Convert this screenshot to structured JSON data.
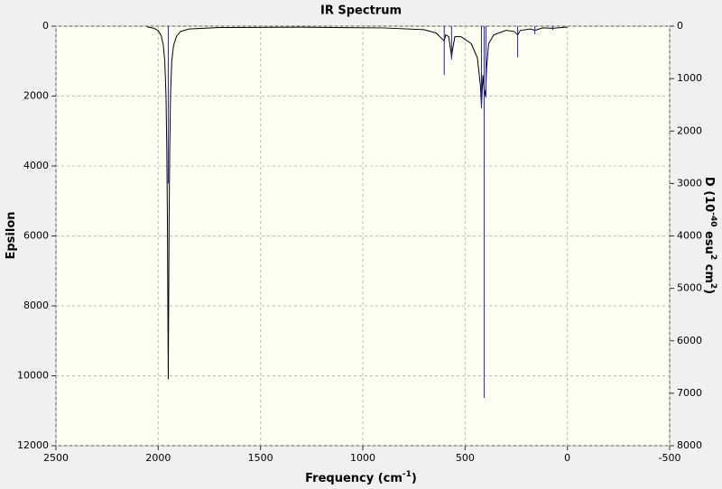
{
  "chart_data": {
    "type": "line",
    "title": "IR Spectrum",
    "x_label": [
      {
        "text": "Frequency (cm"
      },
      {
        "text": "-1",
        "sup": true
      },
      {
        "text": ")"
      }
    ],
    "y_label": [
      {
        "text": "Epsilon"
      }
    ],
    "y2_label": [
      {
        "text": "D (10"
      },
      {
        "text": "-40",
        "sup": true
      },
      {
        "text": " esu"
      },
      {
        "text": "2",
        "sup": true
      },
      {
        "text": " cm"
      },
      {
        "text": "2",
        "sup": true
      },
      {
        "text": ")"
      }
    ],
    "xlim": [
      2500,
      -500
    ],
    "xticks": [
      2500,
      2000,
      1500,
      1000,
      500,
      0,
      -500
    ],
    "ylim": [
      0,
      12000
    ],
    "yticks": [
      0,
      2000,
      4000,
      6000,
      8000,
      10000,
      12000
    ],
    "y_inverted": true,
    "y2lim": [
      0,
      8000
    ],
    "y2ticks": [
      0,
      1000,
      2000,
      3000,
      4000,
      5000,
      6000,
      7000,
      8000
    ],
    "grid": true,
    "series": [
      {
        "type": "line",
        "color": "#000000",
        "x": [
          2055,
          2020,
          2000,
          1985,
          1975,
          1968,
          1962,
          1958,
          1955,
          1953,
          1951,
          1949,
          1947,
          1944,
          1940,
          1934,
          1925,
          1910,
          1890,
          1850,
          1700,
          1300,
          900,
          700,
          640,
          615,
          602,
          595,
          580,
          570,
          566,
          562,
          550,
          520,
          470,
          440,
          425,
          420,
          413,
          407,
          400,
          395,
          385,
          360,
          300,
          260,
          243,
          230,
          180,
          159,
          120,
          71,
          30,
          0
        ],
        "values": [
          20,
          60,
          130,
          280,
          550,
          1000,
          2000,
          3600,
          5600,
          8000,
          10100,
          8000,
          5600,
          3600,
          2000,
          1000,
          550,
          280,
          150,
          80,
          40,
          30,
          50,
          100,
          200,
          350,
          420,
          250,
          300,
          700,
          880,
          700,
          300,
          300,
          500,
          900,
          1700,
          2300,
          1400,
          1800,
          2000,
          1200,
          500,
          250,
          120,
          150,
          250,
          120,
          80,
          120,
          50,
          60,
          40,
          30
        ]
      },
      {
        "type": "stick",
        "axis": "y2",
        "color": "#2020c0",
        "x": [
          1951,
          602,
          566,
          420,
          407,
          398,
          243,
          159,
          71
        ],
        "values": [
          3000,
          930,
          640,
          1570,
          7090,
          1360,
          590,
          155,
          70
        ]
      }
    ]
  }
}
